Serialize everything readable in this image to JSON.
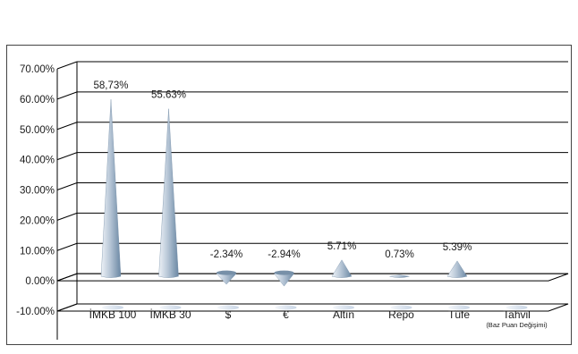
{
  "chart_data": {
    "type": "bar",
    "title": "",
    "xlabel": "",
    "ylabel": "",
    "ylim": [
      -10,
      70
    ],
    "yticks": [
      "-10.00%",
      "0.00%",
      "10.00%",
      "20.00%",
      "30.00%",
      "40.00%",
      "50.00%",
      "60.00%",
      "70.00%"
    ],
    "ytick_values": [
      -10,
      0,
      10,
      20,
      30,
      40,
      50,
      60,
      70
    ],
    "grid": true,
    "legend": "none",
    "categories": [
      "İMKB 100",
      "İMKB 30",
      "$",
      "€",
      "Altın",
      "Repo",
      "Tüfe",
      "Tahvil"
    ],
    "category_sublabels": [
      "",
      "",
      "",
      "",
      "",
      "",
      "",
      "(Baz Puan Değişimi)"
    ],
    "values": [
      58.73,
      55.63,
      -2.34,
      -2.94,
      5.71,
      0.73,
      5.39,
      null
    ],
    "data_labels": [
      "58,73%",
      "55.63%",
      "-2.34%",
      "-2.94%",
      "5.71%",
      "0.73%",
      "5.39%",
      ""
    ],
    "colors": {
      "bar_light": "#e8eef5",
      "bar_mid": "#b4c4d6",
      "bar_dark": "#6f8ca8",
      "grid": "#000000",
      "text": "#1a1a1a"
    }
  }
}
